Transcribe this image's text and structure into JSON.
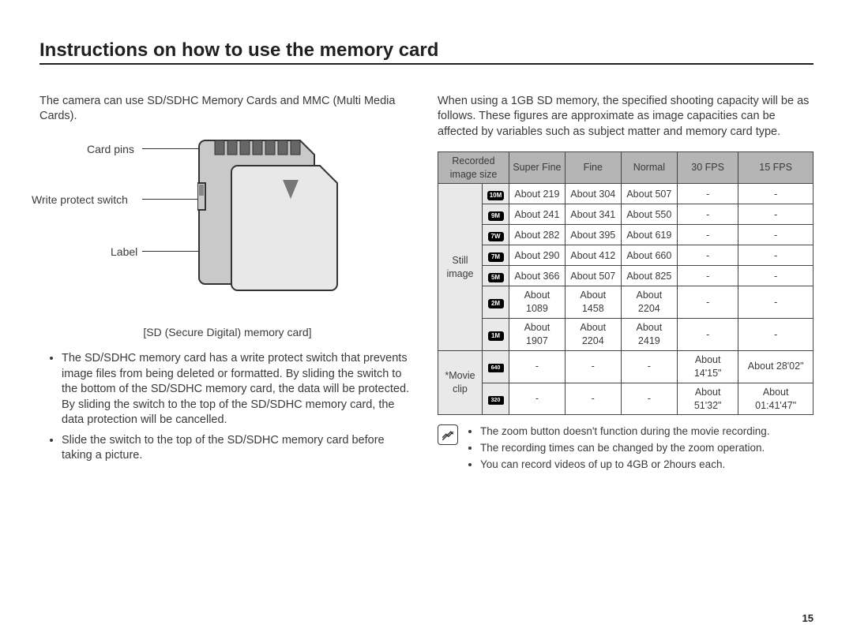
{
  "title": "Instructions on how to use the memory card",
  "left": {
    "intro": "The camera can use SD/SDHC Memory Cards and MMC (Multi Media Cards).",
    "labels": {
      "pins": "Card pins",
      "switch": "Write protect switch",
      "label": "Label"
    },
    "caption": "[SD (Secure Digital) memory card]",
    "bullets": [
      "The SD/SDHC memory card has a write protect switch that prevents image files from being deleted or formatted. By sliding the switch to the bottom of the SD/SDHC memory card, the data will be protected. By sliding the switch to the top of the SD/SDHC memory card, the data protection will be cancelled.",
      "Slide the switch to the top of the SD/SDHC memory card before taking a picture."
    ]
  },
  "right": {
    "intro": "When using a 1GB SD memory, the specified shooting capacity will be as follows. These figures are approximate as image capacities can be affected by variables such as subject matter and memory card type.",
    "table": {
      "headers": [
        "Recorded image size",
        "Super Fine",
        "Fine",
        "Normal",
        "30 FPS",
        "15 FPS"
      ],
      "groups": [
        {
          "label": "Still image",
          "rows": [
            {
              "icon": "10M",
              "sf": "About 219",
              "f": "About 304",
              "n": "About 507",
              "f30": "-",
              "f15": "-"
            },
            {
              "icon": "9M",
              "sf": "About 241",
              "f": "About 341",
              "n": "About 550",
              "f30": "-",
              "f15": "-"
            },
            {
              "icon": "7W",
              "sf": "About 282",
              "f": "About 395",
              "n": "About 619",
              "f30": "-",
              "f15": "-"
            },
            {
              "icon": "7M",
              "sf": "About 290",
              "f": "About 412",
              "n": "About 660",
              "f30": "-",
              "f15": "-"
            },
            {
              "icon": "5M",
              "sf": "About 366",
              "f": "About 507",
              "n": "About 825",
              "f30": "-",
              "f15": "-"
            },
            {
              "icon": "2M",
              "sf": "About 1089",
              "f": "About 1458",
              "n": "About 2204",
              "f30": "-",
              "f15": "-"
            },
            {
              "icon": "1M",
              "sf": "About 1907",
              "f": "About 2204",
              "n": "About 2419",
              "f30": "-",
              "f15": "-"
            }
          ]
        },
        {
          "label": "*Movie clip",
          "rows": [
            {
              "icon": "640",
              "sf": "-",
              "f": "-",
              "n": "-",
              "f30": "About 14'15\"",
              "f15": "About 28'02\""
            },
            {
              "icon": "320",
              "sf": "-",
              "f": "-",
              "n": "-",
              "f30": "About 51'32\"",
              "f15": "About 01:41'47\""
            }
          ]
        }
      ]
    },
    "notes": [
      "The zoom button doesn't function during the movie recording.",
      "The recording times can be changed by the zoom operation.",
      "You can record videos of up to 4GB or 2hours each."
    ]
  },
  "pagenum": "15",
  "colors": {
    "header_bg": "#b5b5b5",
    "rowhead_bg": "#e9e9e9",
    "border": "#444444",
    "text": "#3a3a3a"
  }
}
